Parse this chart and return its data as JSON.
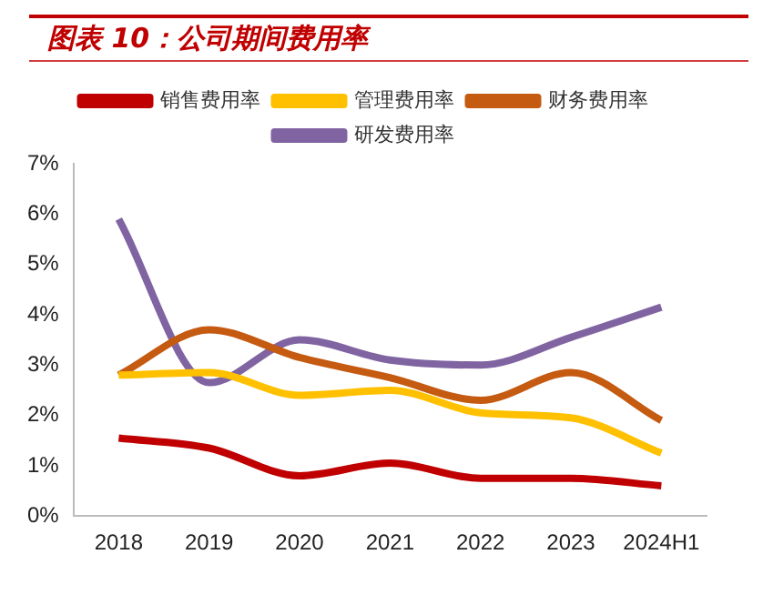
{
  "chart_data": {
    "type": "line",
    "title": "图表 10：公司期间费用率",
    "categories": [
      "2018",
      "2019",
      "2020",
      "2021",
      "2022",
      "2023",
      "2024H1"
    ],
    "series": [
      {
        "name": "销售费用率",
        "color": "#c00000",
        "values": [
          1.55,
          1.35,
          0.8,
          1.05,
          0.75,
          0.75,
          0.6
        ]
      },
      {
        "name": "管理费用率",
        "color": "#ffc000",
        "values": [
          2.8,
          2.85,
          2.4,
          2.5,
          2.05,
          1.95,
          1.25
        ]
      },
      {
        "name": "财务费用率",
        "color": "#c55a11",
        "values": [
          2.8,
          3.7,
          3.15,
          2.75,
          2.3,
          2.85,
          1.9
        ]
      },
      {
        "name": "研发费用率",
        "color": "#8064a2",
        "values": [
          5.9,
          2.65,
          3.5,
          3.1,
          3.0,
          3.55,
          4.15
        ]
      }
    ],
    "ylim": [
      0,
      7
    ],
    "yticks": [
      {
        "value": 0,
        "label": "0%"
      },
      {
        "value": 1,
        "label": "1%"
      },
      {
        "value": 2,
        "label": "2%"
      },
      {
        "value": 3,
        "label": "3%"
      },
      {
        "value": 4,
        "label": "4%"
      },
      {
        "value": 5,
        "label": "5%"
      },
      {
        "value": 6,
        "label": "6%"
      },
      {
        "value": 7,
        "label": "7%"
      }
    ],
    "grid": false,
    "legend": "top",
    "marker": "none",
    "line_style": "solid"
  }
}
